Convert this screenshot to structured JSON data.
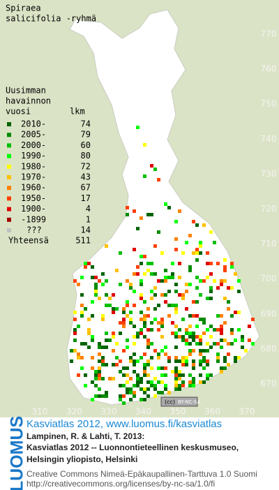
{
  "title": [
    "Spiraea",
    "salicifolia -ryhmä"
  ],
  "legend": {
    "heading": [
      "Uusimman",
      "havainnon",
      "vuosi"
    ],
    "count_heading": "lkm",
    "rows": [
      {
        "label": "2010-",
        "count": 74,
        "color": "#006400"
      },
      {
        "label": "2005-",
        "count": 79,
        "color": "#008a00"
      },
      {
        "label": "2000-",
        "count": 60,
        "color": "#00c000"
      },
      {
        "label": "1990-",
        "count": 80,
        "color": "#00ff00"
      },
      {
        "label": "1980-",
        "count": 72,
        "color": "#ffff00"
      },
      {
        "label": "1970-",
        "count": 43,
        "color": "#ffc000"
      },
      {
        "label": "1960-",
        "count": 67,
        "color": "#ff8000"
      },
      {
        "label": "1950-",
        "count": 17,
        "color": "#ff4000"
      },
      {
        "label": "1900-",
        "count": 4,
        "color": "#e00000"
      },
      {
        "label": "-1899",
        "count": 1,
        "color": "#a00000"
      },
      {
        "label": "???",
        "count": 14,
        "color": "#c0c0c0"
      }
    ],
    "total_label": "Yhteensä",
    "total": 511
  },
  "y_labels": [
    770,
    760,
    750,
    740,
    730,
    720,
    710,
    700,
    690,
    680,
    670
  ],
  "x_labels": [
    310,
    320,
    330,
    340,
    350,
    360,
    370
  ],
  "license_badge": "BY-NC-SA",
  "footer": {
    "logo": "LUOMUS",
    "link": "Kasviatlas 2012, www.luomus.fi/kasviatlas",
    "citation": [
      "Lampinen, R. & Lahti, T. 2013:",
      "Kasviatlas 2012 -- Luonnontieteellinen keskusmuseo,",
      "Helsingin yliopisto, Helsinki"
    ],
    "license": [
      "Creative Commons Nimeä-Epäkaupallinen-Tarttuva 1.0 Suomi",
      "http://creativecommons.org/licenses/by-nc-sa/1.0/fi"
    ]
  }
}
